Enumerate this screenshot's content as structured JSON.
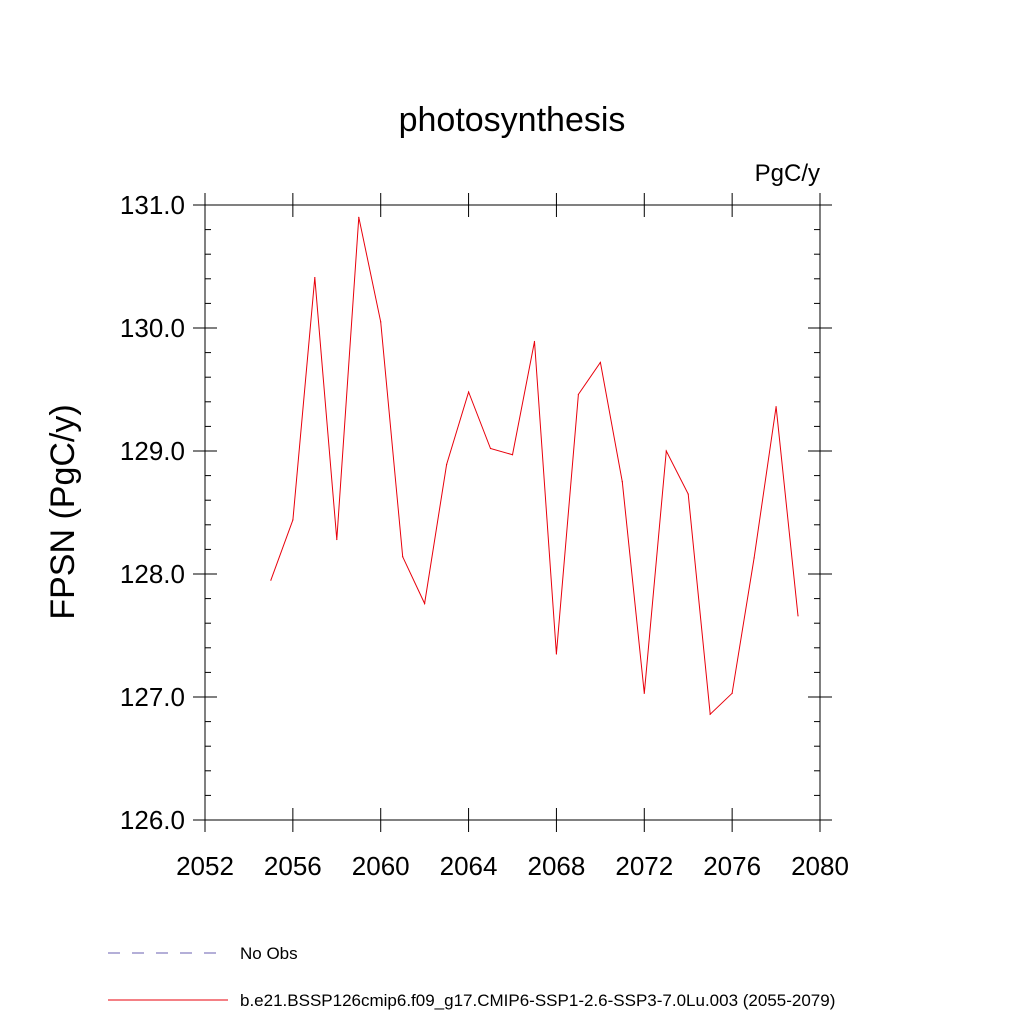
{
  "chart_data": {
    "type": "line",
    "title": "photosynthesis",
    "units_label": "PgC/y",
    "ylabel": "FPSN  (PgC/y)",
    "xlabel": "",
    "xlim": [
      2052,
      2080
    ],
    "ylim": [
      126.0,
      131.0
    ],
    "x_ticks": [
      2052,
      2056,
      2060,
      2064,
      2068,
      2072,
      2076,
      2080
    ],
    "y_ticks": [
      "126.0",
      "127.0",
      "128.0",
      "129.0",
      "130.0",
      "131.0"
    ],
    "grid": false,
    "legend_position": "bottom",
    "series": [
      {
        "name": "b.e21.BSSP126cmip6.f09_g17.CMIP6-SSP1-2.6-SSP3-7.0Lu.003 (2055-2079)",
        "color": "#e8000b",
        "style": "solid",
        "x": [
          2055,
          2056,
          2057,
          2058,
          2059,
          2060,
          2061,
          2062,
          2063,
          2064,
          2065,
          2066,
          2067,
          2068,
          2069,
          2070,
          2071,
          2072,
          2073,
          2074,
          2075,
          2076,
          2077,
          2078,
          2079
        ],
        "y": [
          127.95,
          128.44,
          130.41,
          128.28,
          130.9,
          130.05,
          128.14,
          127.76,
          128.89,
          129.48,
          129.02,
          128.97,
          129.89,
          127.35,
          129.46,
          129.72,
          128.75,
          127.03,
          129.0,
          128.65,
          126.86,
          127.03,
          128.13,
          129.36,
          127.66
        ]
      }
    ],
    "legend": [
      {
        "label": "No Obs",
        "color": "#6a5fb0",
        "style": "dashed"
      },
      {
        "label": "b.e21.BSSP126cmip6.f09_g17.CMIP6-SSP1-2.6-SSP3-7.0Lu.003 (2055-2079)",
        "color": "#e8000b",
        "style": "solid"
      }
    ]
  }
}
